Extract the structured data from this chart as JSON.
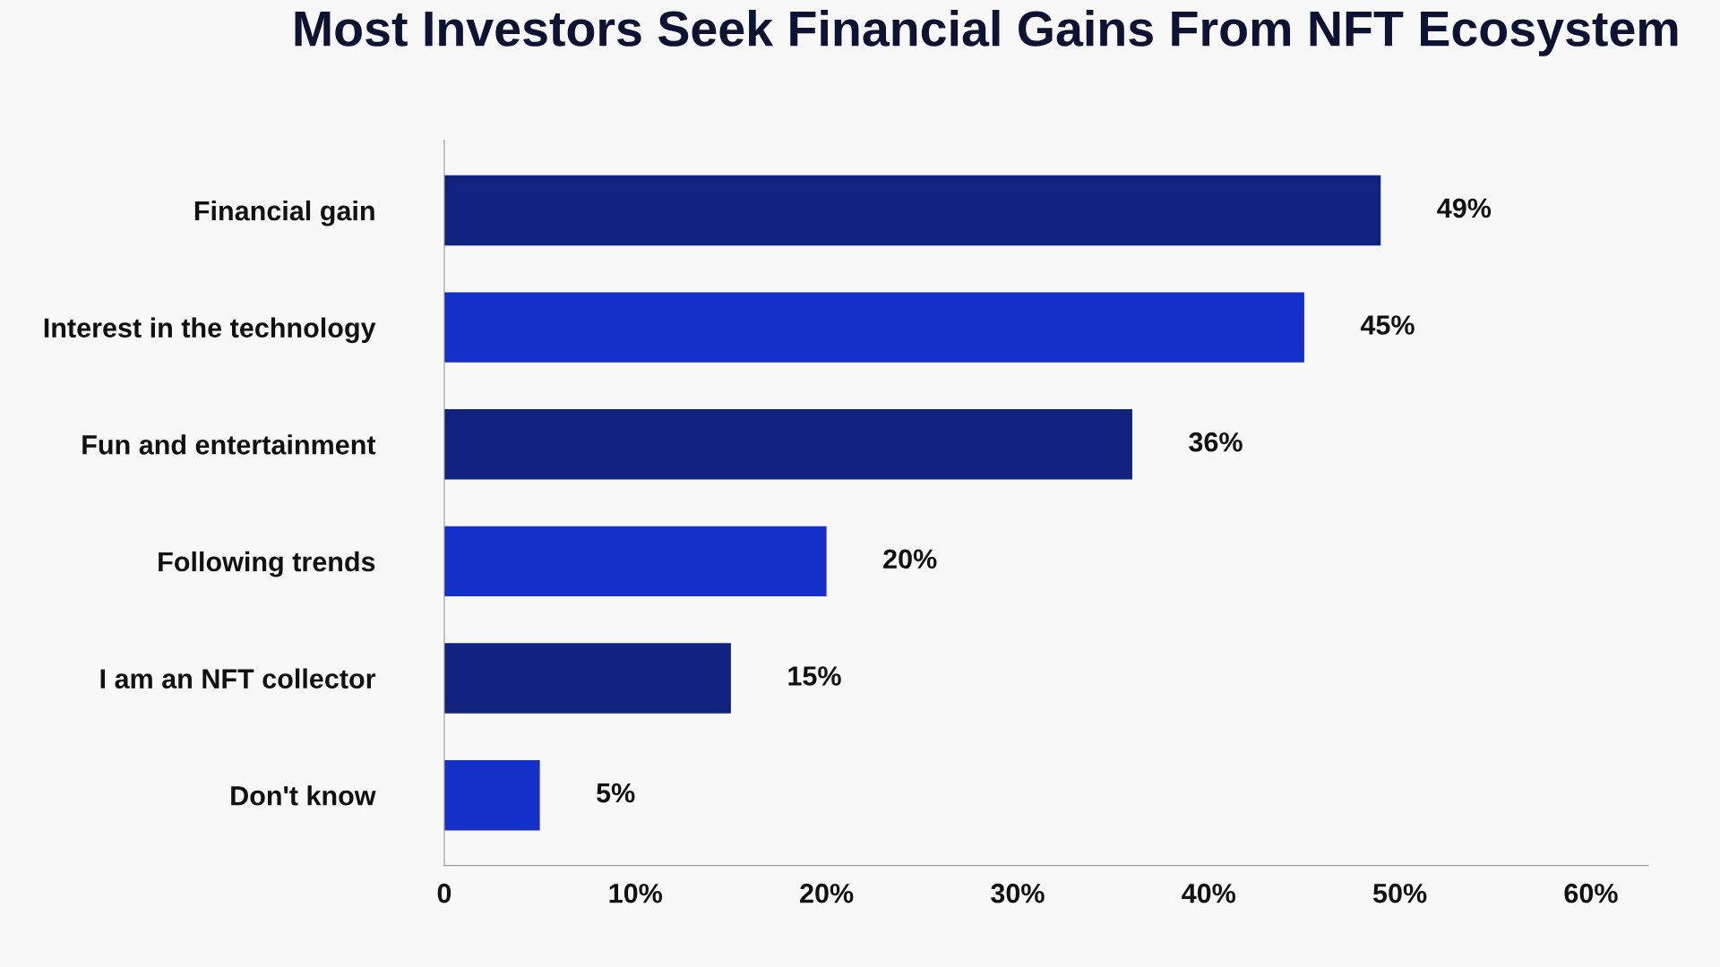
{
  "chart_data": {
    "type": "bar",
    "orientation": "horizontal",
    "title": "Most Investors Seek Financial Gains From NFT Ecosystem",
    "categories": [
      "Financial gain",
      "Interest in the technology",
      "Fun and entertainment",
      "Following trends",
      "I am an NFT collector",
      "Don't know"
    ],
    "values": [
      49,
      45,
      36,
      20,
      15,
      5
    ],
    "colors": [
      "#10237f",
      "#1430c8",
      "#10237f",
      "#1430c8",
      "#10237f",
      "#1430c8"
    ],
    "value_labels": [
      "49%",
      "45%",
      "36%",
      "20%",
      "15%",
      "5%"
    ],
    "xlim": [
      0,
      63
    ],
    "xticks": [
      {
        "value": 0,
        "label": "0"
      },
      {
        "value": 10,
        "label": "10%"
      },
      {
        "value": 20,
        "label": "20%"
      },
      {
        "value": 30,
        "label": "30%"
      },
      {
        "value": 40,
        "label": "40%"
      },
      {
        "value": 50,
        "label": "50%"
      },
      {
        "value": 60,
        "label": "60%"
      }
    ],
    "grid": false,
    "legend": false
  }
}
